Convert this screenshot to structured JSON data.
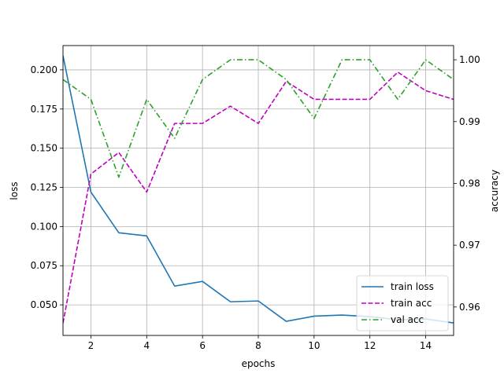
{
  "chart_data": {
    "type": "line",
    "title": "",
    "xlabel": "epochs",
    "ylabel_left": "loss",
    "ylabel_right": "accuracy",
    "xlim": [
      1,
      15
    ],
    "ylim_left": [
      0.0305,
      0.2155
    ],
    "ylim_right": [
      0.9554,
      1.0023
    ],
    "xticks": [
      2,
      4,
      6,
      8,
      10,
      12,
      14
    ],
    "yticks_left": [
      "0.050",
      "0.075",
      "0.100",
      "0.125",
      "0.150",
      "0.175",
      "0.200"
    ],
    "yticks_right": [
      "0.96",
      "0.97",
      "0.98",
      "0.99",
      "1.00"
    ],
    "grid": true,
    "legend_position": "lower-right",
    "x": [
      1,
      2,
      3,
      4,
      5,
      6,
      7,
      8,
      9,
      10,
      11,
      12,
      13,
      14,
      15
    ],
    "series": [
      {
        "name": "train loss",
        "axis": "left",
        "color": "#1f77b4",
        "style": "solid",
        "values": [
          0.209,
          0.122,
          0.096,
          0.094,
          0.062,
          0.065,
          0.052,
          0.0525,
          0.0395,
          0.0428,
          0.0435,
          0.0425,
          0.0405,
          0.041,
          0.0385
        ]
      },
      {
        "name": "train acc",
        "axis": "right",
        "color": "#bf00bf",
        "style": "dashed",
        "values": [
          0.9574,
          0.9815,
          0.985,
          0.9786,
          0.9897,
          0.9897,
          0.9925,
          0.9897,
          0.9965,
          0.9936,
          0.9936,
          0.9936,
          0.998,
          0.995,
          0.9936
        ]
      },
      {
        "name": "val acc",
        "axis": "right",
        "color": "#2ca02c",
        "style": "dashdot",
        "values": [
          0.9968,
          0.9936,
          0.981,
          0.9936,
          0.9873,
          0.9968,
          1.0,
          1.0,
          0.9968,
          0.9905,
          1.0,
          1.0,
          0.9936,
          1.0,
          0.9968
        ]
      }
    ]
  }
}
